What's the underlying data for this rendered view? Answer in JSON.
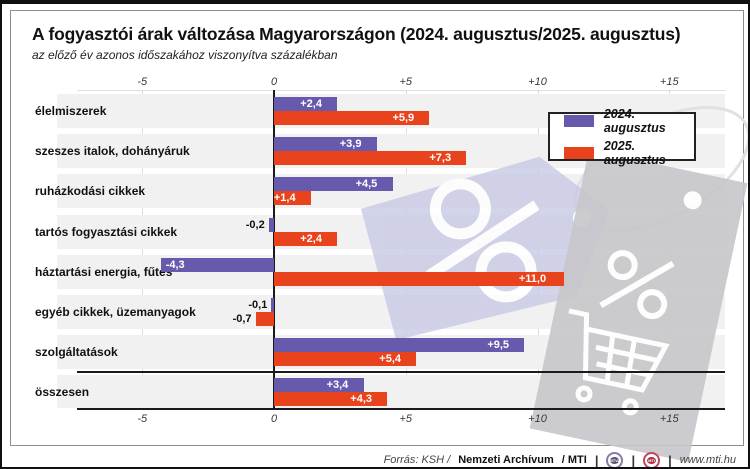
{
  "header": {
    "title": "A fogyasztói árak változása Magyarországon (2024. augusztus/2025. augusztus)",
    "subtitle": "az előző év azonos időszakához viszonyítva százalékban"
  },
  "legend": {
    "items": [
      {
        "label": "2024. augusztus",
        "color": "#675aad"
      },
      {
        "label": "2025. augusztus",
        "color": "#e8431d"
      }
    ]
  },
  "chart_data": {
    "type": "bar",
    "orientation": "horizontal",
    "title": "A fogyasztói árak változása Magyarországon (2024. augusztus/2025. augusztus)",
    "subtitle": "az előző év azonos időszakához viszonyítva százalékban",
    "unit": "percent",
    "categories": [
      "élelmiszerek",
      "szeszes italok, dohányáruk",
      "ruházkodási cikkek",
      "tartós fogyasztási cikkek",
      "háztartási energia, fűtés",
      "egyéb cikkek, üzemanyagok",
      "szolgáltatások",
      "összesen"
    ],
    "series": [
      {
        "name": "2024. augusztus",
        "color": "#675aad",
        "values": [
          2.4,
          3.9,
          4.5,
          -0.2,
          -4.3,
          -0.1,
          9.5,
          3.4
        ],
        "labels": [
          "+2,4",
          "+3,9",
          "+4,5",
          "-0,2",
          "-4,3",
          "-0,1",
          "+9,5",
          "+3,4"
        ]
      },
      {
        "name": "2025. augusztus",
        "color": "#e8431d",
        "values": [
          5.9,
          7.3,
          1.4,
          2.4,
          11.0,
          -0.7,
          5.4,
          4.3
        ],
        "labels": [
          "+5,9",
          "+7,3",
          "+1,4",
          "+2,4",
          "+11,0",
          "-0,7",
          "+5,4",
          "+4,3"
        ]
      }
    ],
    "xlim": [
      -7.5,
      17.5
    ],
    "ticks": [
      {
        "value": -5,
        "label": "-5"
      },
      {
        "value": 0,
        "label": "0"
      },
      {
        "value": 5,
        "label": "+5"
      },
      {
        "value": 10,
        "label": "+10"
      },
      {
        "value": 15,
        "label": "+15"
      }
    ],
    "separator_before_category": "összesen",
    "grid": true,
    "legend_position": "top-right",
    "band_color": "#f1f1f1"
  },
  "watermark": {
    "purple_tag_color": "#c9cbe5",
    "gray_tag_color": "#c7c7cb",
    "orbit_color": "#e0e0e6",
    "symbol_color": "#ffffff"
  },
  "footer": {
    "source_prefix": "Forrás: KSH /",
    "source_archive": "Nemzeti Archívum",
    "source_suffix": "/ MTI",
    "separator": "|",
    "logos": [
      {
        "label": "MTVA"
      },
      {
        "label": "MTI"
      }
    ],
    "website": "www.mti.hu"
  }
}
